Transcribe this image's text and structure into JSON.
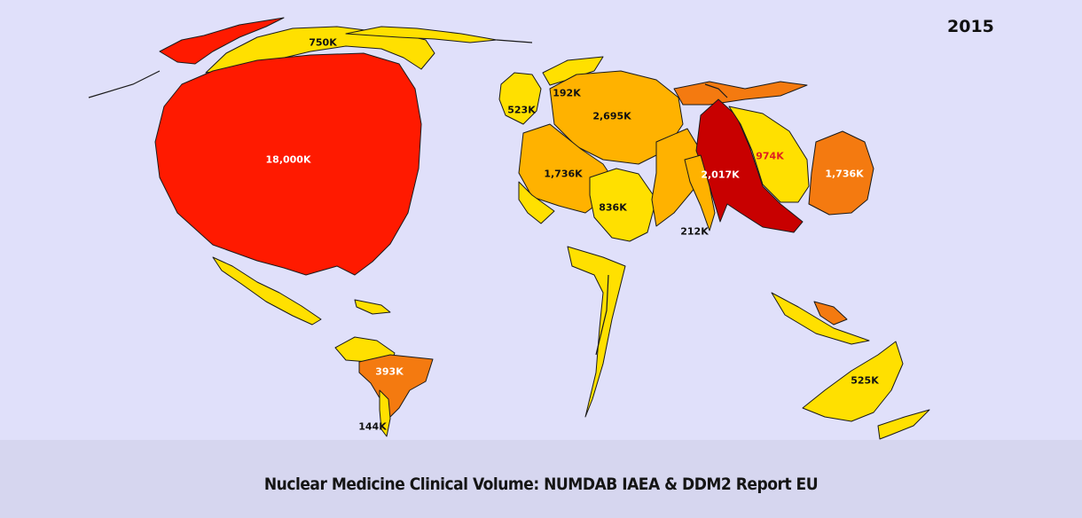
{
  "year": "2015",
  "caption": "Nuclear Medicine Clinical Volume: NUMDAB IAEA & DDM2 Report EU",
  "palette": {
    "background": "#e0e0fa",
    "red": "#ff1a00",
    "dark_red": "#c80000",
    "orange": "#f47a10",
    "light_orange": "#ffb200",
    "yellow": "#ffe000",
    "outline": "#1a1a1a"
  },
  "regions": [
    {
      "id": "north-america",
      "value": "18,000K",
      "color": "#ff1a00"
    },
    {
      "id": "canada",
      "value": "750K",
      "color": "#ffe000"
    },
    {
      "id": "south-america",
      "value": "393K",
      "color": "#f47a10"
    },
    {
      "id": "chile",
      "value": "144K",
      "color": "#ffe000"
    },
    {
      "id": "uk",
      "value": "523K",
      "color": "#ffe000"
    },
    {
      "id": "scandinavia",
      "value": "192K",
      "color": "#ffe000"
    },
    {
      "id": "germany",
      "value": "2,695K",
      "color": "#ffb200"
    },
    {
      "id": "france",
      "value": "1,736K",
      "color": "#ffb200"
    },
    {
      "id": "italy",
      "value": "836K",
      "color": "#ffe000"
    },
    {
      "id": "russia",
      "value": "2,017K",
      "color": "#c80000"
    },
    {
      "id": "china",
      "value": "974K",
      "color": "#ffe000"
    },
    {
      "id": "japan",
      "value": "1,736K",
      "color": "#f47a10"
    },
    {
      "id": "india",
      "value": "212K",
      "color": "#ffe000"
    },
    {
      "id": "australia",
      "value": "525K",
      "color": "#ffe000"
    }
  ]
}
